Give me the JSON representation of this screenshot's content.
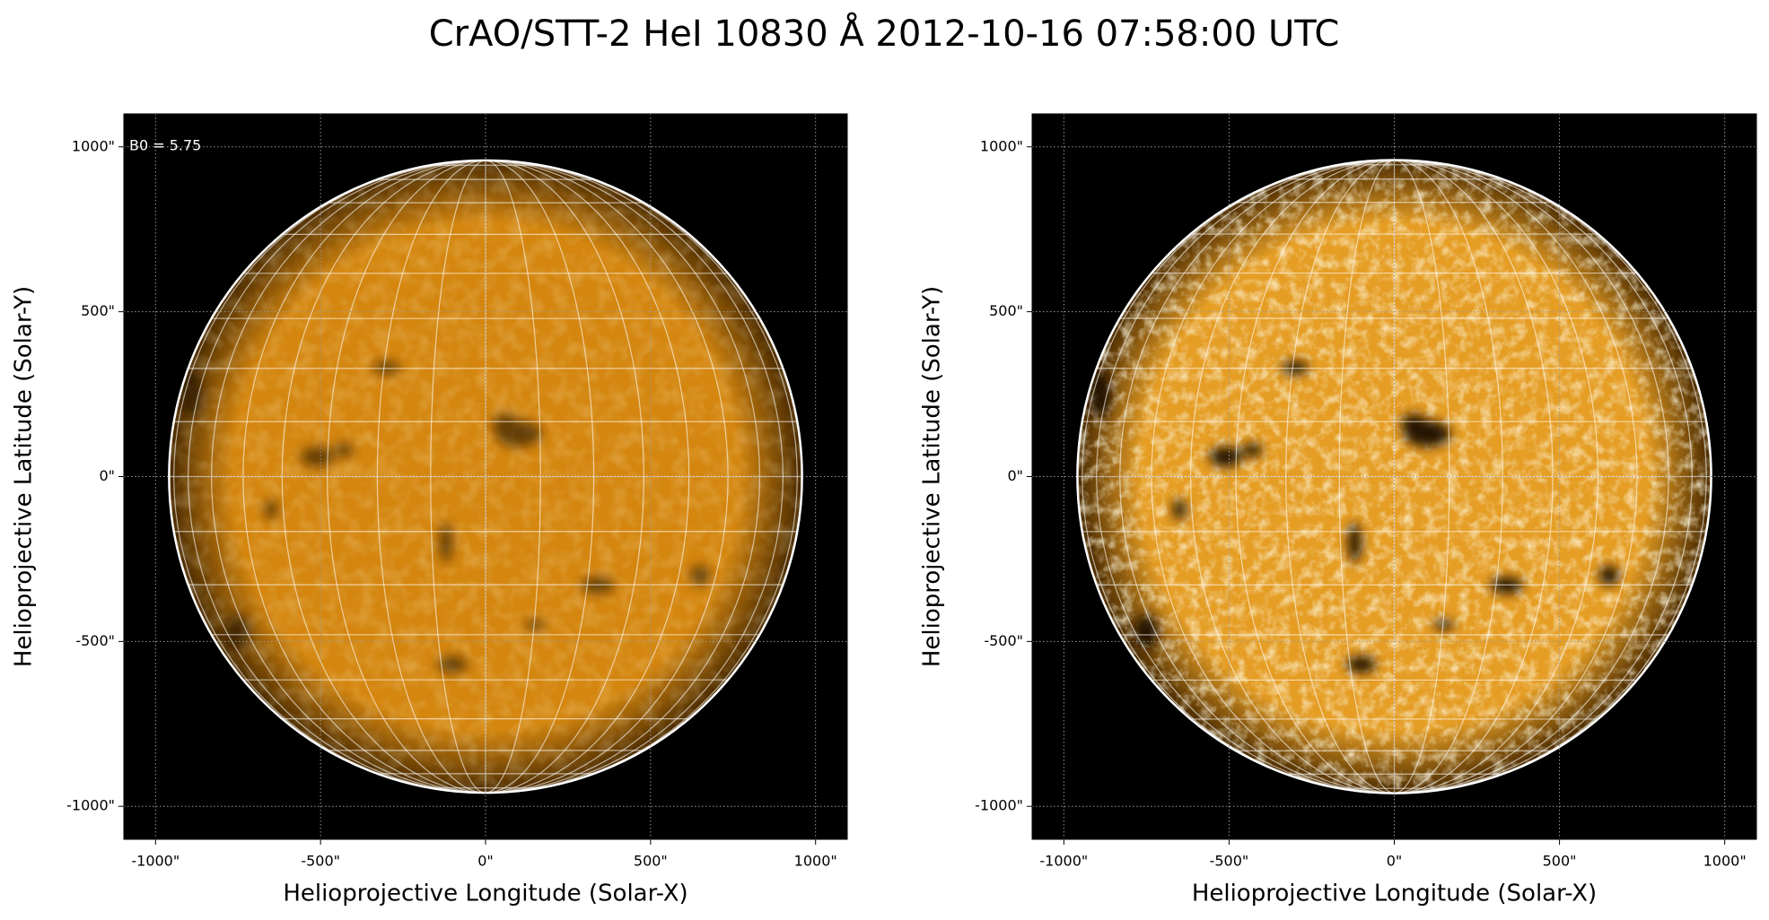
{
  "title": "CrAO/STT-2 HeI 10830 Å 2012-10-16 07:58:00 UTC",
  "chart_data": [
    {
      "type": "solar-map",
      "annotation": "B0 = 5.75",
      "xlabel": "Helioprojective Longitude (Solar-X)",
      "ylabel": "Helioprojective Latitude (Solar-Y)",
      "xlim": [
        -1096,
        1096
      ],
      "ylim": [
        -1100,
        1100
      ],
      "solar_radius": 959,
      "xticks": [
        {
          "value": -1000,
          "label": "-1000\""
        },
        {
          "value": -500,
          "label": "-500\""
        },
        {
          "value": 0,
          "label": "0\""
        },
        {
          "value": 500,
          "label": "500\""
        },
        {
          "value": 1000,
          "label": "1000\""
        }
      ],
      "yticks": [
        {
          "value": -1000,
          "label": "-1000\""
        },
        {
          "value": -500,
          "label": "-500\""
        },
        {
          "value": 0,
          "label": "0\""
        },
        {
          "value": 500,
          "label": "500\""
        },
        {
          "value": 1000,
          "label": "1000\""
        }
      ],
      "grid": true,
      "color": "#d4860f"
    },
    {
      "type": "solar-map",
      "xlabel": "Helioprojective Longitude (Solar-X)",
      "ylabel": "Helioprojective Latitude (Solar-Y)",
      "xlim": [
        -1096,
        1096
      ],
      "ylim": [
        -1100,
        1100
      ],
      "solar_radius": 959,
      "xticks": [
        {
          "value": -1000,
          "label": "-1000\""
        },
        {
          "value": -500,
          "label": "-500\""
        },
        {
          "value": 0,
          "label": "0\""
        },
        {
          "value": 500,
          "label": "500\""
        },
        {
          "value": 1000,
          "label": "1000\""
        }
      ],
      "yticks": [
        {
          "value": -1000,
          "label": "-1000\""
        },
        {
          "value": -500,
          "label": "-500\""
        },
        {
          "value": 0,
          "label": "0\""
        },
        {
          "value": 500,
          "label": "500\""
        },
        {
          "value": 1000,
          "label": "1000\""
        }
      ],
      "grid": true,
      "color": "#e59d24"
    }
  ]
}
